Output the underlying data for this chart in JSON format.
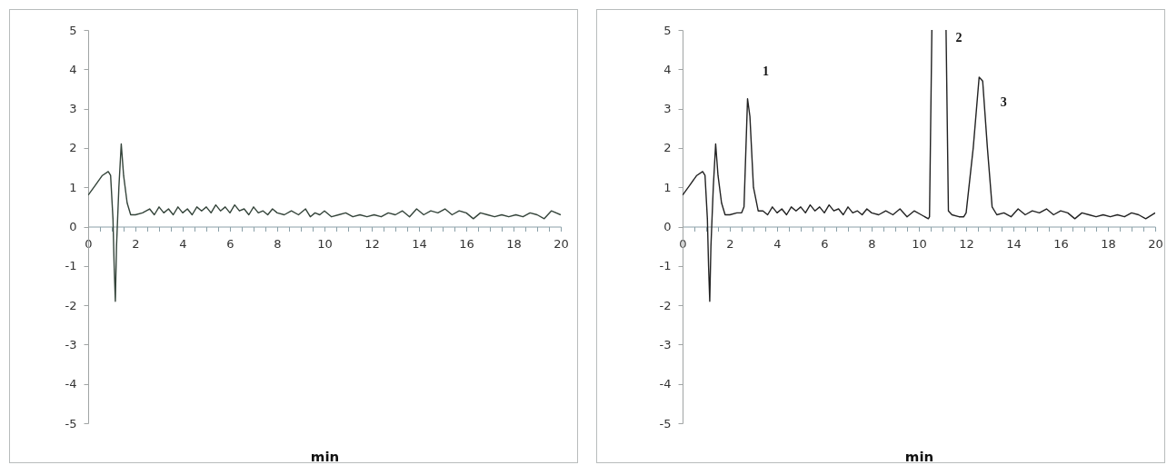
{
  "chart_data": [
    {
      "type": "line",
      "xlabel": "min",
      "xlim": [
        0,
        20
      ],
      "ylim": [
        -5,
        5
      ],
      "xticks": [
        0,
        {
          "value": 0.5,
          "label": null
        },
        {
          "value": 1,
          "label": null
        },
        {
          "value": 1.5,
          "label": null
        },
        2,
        {
          "value": 2.5,
          "label": null
        },
        {
          "value": 3,
          "label": null
        },
        {
          "value": 3.5,
          "label": null
        },
        4,
        {
          "value": 4.5,
          "label": null
        },
        {
          "value": 5,
          "label": null
        },
        {
          "value": 5.5,
          "label": null
        },
        6,
        {
          "value": 6.5,
          "label": null
        },
        {
          "value": 7,
          "label": null
        },
        {
          "value": 7.5,
          "label": null
        },
        8,
        {
          "value": 8.5,
          "label": null
        },
        {
          "value": 9,
          "label": null
        },
        {
          "value": 9.5,
          "label": null
        },
        10,
        {
          "value": 10.5,
          "label": null
        },
        {
          "value": 11,
          "label": null
        },
        {
          "value": 11.5,
          "label": null
        },
        12,
        {
          "value": 12.5,
          "label": null
        },
        {
          "value": 13,
          "label": null
        },
        {
          "value": 13.5,
          "label": null
        },
        14,
        {
          "value": 14.5,
          "label": null
        },
        {
          "value": 15,
          "label": null
        },
        {
          "value": 15.5,
          "label": null
        },
        16,
        {
          "value": 16.5,
          "label": null
        },
        {
          "value": 17,
          "label": null
        },
        {
          "value": 17.5,
          "label": null
        },
        18,
        {
          "value": 18.5,
          "label": null
        },
        {
          "value": 19,
          "label": null
        },
        {
          "value": 19.5,
          "label": null
        },
        20
      ],
      "yticks": [
        -5,
        -4,
        -3,
        -2,
        -1,
        0,
        1,
        2,
        3,
        4,
        5
      ],
      "series": [
        {
          "color": "#34443a",
          "x": [
            0,
            0.3,
            0.6,
            0.85,
            0.95,
            1.05,
            1.1,
            1.15,
            1.2,
            1.3,
            1.4,
            1.5,
            1.65,
            1.8,
            2.0,
            2.3,
            2.6,
            2.8,
            3.0,
            3.2,
            3.4,
            3.6,
            3.8,
            4.0,
            4.2,
            4.4,
            4.6,
            4.8,
            5.0,
            5.2,
            5.4,
            5.6,
            5.8,
            6.0,
            6.2,
            6.4,
            6.6,
            6.8,
            7.0,
            7.2,
            7.4,
            7.6,
            7.8,
            8.0,
            8.3,
            8.6,
            8.9,
            9.2,
            9.4,
            9.6,
            9.8,
            10.0,
            10.3,
            10.6,
            10.9,
            11.2,
            11.5,
            11.8,
            12.1,
            12.4,
            12.7,
            13.0,
            13.3,
            13.6,
            13.9,
            14.2,
            14.5,
            14.8,
            15.1,
            15.4,
            15.7,
            16.0,
            16.3,
            16.6,
            16.9,
            17.2,
            17.5,
            17.8,
            18.1,
            18.4,
            18.7,
            19.0,
            19.3,
            19.6,
            20.0
          ],
          "values": [
            0.8,
            1.05,
            1.3,
            1.4,
            1.3,
            0.2,
            -1.0,
            -1.9,
            -0.5,
            1.0,
            2.1,
            1.3,
            0.6,
            0.3,
            0.3,
            0.35,
            0.45,
            0.3,
            0.5,
            0.35,
            0.45,
            0.3,
            0.5,
            0.35,
            0.45,
            0.3,
            0.5,
            0.4,
            0.5,
            0.35,
            0.55,
            0.4,
            0.5,
            0.35,
            0.55,
            0.4,
            0.45,
            0.3,
            0.5,
            0.35,
            0.4,
            0.3,
            0.45,
            0.35,
            0.3,
            0.4,
            0.3,
            0.45,
            0.25,
            0.35,
            0.3,
            0.4,
            0.25,
            0.3,
            0.35,
            0.25,
            0.3,
            0.25,
            0.3,
            0.25,
            0.35,
            0.3,
            0.4,
            0.25,
            0.45,
            0.3,
            0.4,
            0.35,
            0.45,
            0.3,
            0.4,
            0.35,
            0.2,
            0.35,
            0.3,
            0.25,
            0.3,
            0.25,
            0.3,
            0.25,
            0.35,
            0.3,
            0.2,
            0.4,
            0.3
          ]
        }
      ]
    },
    {
      "type": "line",
      "xlabel": "min",
      "xlim": [
        0,
        20
      ],
      "ylim": [
        -5,
        5
      ],
      "xticks": [
        0,
        {
          "value": 0.5,
          "label": null
        },
        {
          "value": 1,
          "label": null
        },
        {
          "value": 1.5,
          "label": null
        },
        2,
        {
          "value": 2.5,
          "label": null
        },
        {
          "value": 3,
          "label": null
        },
        {
          "value": 3.5,
          "label": null
        },
        4,
        {
          "value": 4.5,
          "label": null
        },
        {
          "value": 5,
          "label": null
        },
        {
          "value": 5.5,
          "label": null
        },
        6,
        {
          "value": 6.5,
          "label": null
        },
        {
          "value": 7,
          "label": null
        },
        {
          "value": 7.5,
          "label": null
        },
        8,
        {
          "value": 8.5,
          "label": null
        },
        {
          "value": 9,
          "label": null
        },
        {
          "value": 9.5,
          "label": null
        },
        10,
        {
          "value": 10.5,
          "label": null
        },
        {
          "value": 11,
          "label": null
        },
        {
          "value": 11.5,
          "label": null
        },
        12,
        {
          "value": 12.5,
          "label": null
        },
        {
          "value": 13,
          "label": null
        },
        {
          "value": 13.5,
          "label": null
        },
        14,
        {
          "value": 14.5,
          "label": null
        },
        {
          "value": 15,
          "label": null
        },
        {
          "value": 15.5,
          "label": null
        },
        16,
        {
          "value": 16.5,
          "label": null
        },
        {
          "value": 17,
          "label": null
        },
        {
          "value": 17.5,
          "label": null
        },
        18,
        {
          "value": 18.5,
          "label": null
        },
        {
          "value": 19,
          "label": null
        },
        {
          "value": 19.5,
          "label": null
        },
        20
      ],
      "yticks": [
        -5,
        -4,
        -3,
        -2,
        -1,
        0,
        1,
        2,
        3,
        4,
        5
      ],
      "annotations": [
        {
          "text": "1",
          "x": 2.75,
          "y": 3.25
        },
        {
          "text": "2",
          "x": 11.15,
          "y": 5
        },
        {
          "text": "3",
          "x": 12.55,
          "y": 3.8
        }
      ],
      "series": [
        {
          "color": "#222222",
          "x": [
            0,
            0.3,
            0.6,
            0.85,
            0.95,
            1.05,
            1.1,
            1.15,
            1.2,
            1.3,
            1.4,
            1.5,
            1.65,
            1.8,
            2.0,
            2.3,
            2.5,
            2.6,
            2.75,
            2.85,
            3.0,
            3.2,
            3.4,
            3.6,
            3.8,
            4.0,
            4.2,
            4.4,
            4.6,
            4.8,
            5.0,
            5.2,
            5.4,
            5.6,
            5.8,
            6.0,
            6.2,
            6.4,
            6.6,
            6.8,
            7.0,
            7.2,
            7.4,
            7.6,
            7.8,
            8.0,
            8.3,
            8.6,
            8.9,
            9.2,
            9.5,
            9.8,
            10.1,
            10.4,
            10.45,
            10.55,
            10.85,
            11.15,
            11.25,
            11.4,
            11.7,
            11.9,
            12.0,
            12.3,
            12.55,
            12.7,
            12.9,
            13.1,
            13.3,
            13.6,
            13.9,
            14.2,
            14.5,
            14.8,
            15.1,
            15.4,
            15.7,
            16.0,
            16.3,
            16.6,
            16.9,
            17.2,
            17.5,
            17.8,
            18.1,
            18.4,
            18.7,
            19.0,
            19.3,
            19.6,
            20.0
          ],
          "values": [
            0.8,
            1.05,
            1.3,
            1.4,
            1.3,
            0.2,
            -1.0,
            -1.9,
            -0.5,
            1.0,
            2.1,
            1.3,
            0.6,
            0.3,
            0.3,
            0.35,
            0.35,
            0.5,
            3.25,
            2.8,
            1.0,
            0.4,
            0.4,
            0.3,
            0.5,
            0.35,
            0.45,
            0.3,
            0.5,
            0.4,
            0.5,
            0.35,
            0.55,
            0.4,
            0.5,
            0.35,
            0.55,
            0.4,
            0.45,
            0.3,
            0.5,
            0.35,
            0.4,
            0.3,
            0.45,
            0.35,
            0.3,
            0.4,
            0.3,
            0.45,
            0.25,
            0.4,
            0.3,
            0.2,
            0.25,
            5,
            null,
            5,
            0.4,
            0.3,
            0.25,
            0.25,
            0.35,
            2.0,
            3.8,
            3.7,
            2.0,
            0.5,
            0.3,
            0.35,
            0.25,
            0.45,
            0.3,
            0.4,
            0.35,
            0.45,
            0.3,
            0.4,
            0.35,
            0.2,
            0.35,
            0.3,
            0.25,
            0.3,
            0.25,
            0.3,
            0.25,
            0.35,
            0.3,
            0.2,
            0.35
          ]
        }
      ]
    }
  ]
}
